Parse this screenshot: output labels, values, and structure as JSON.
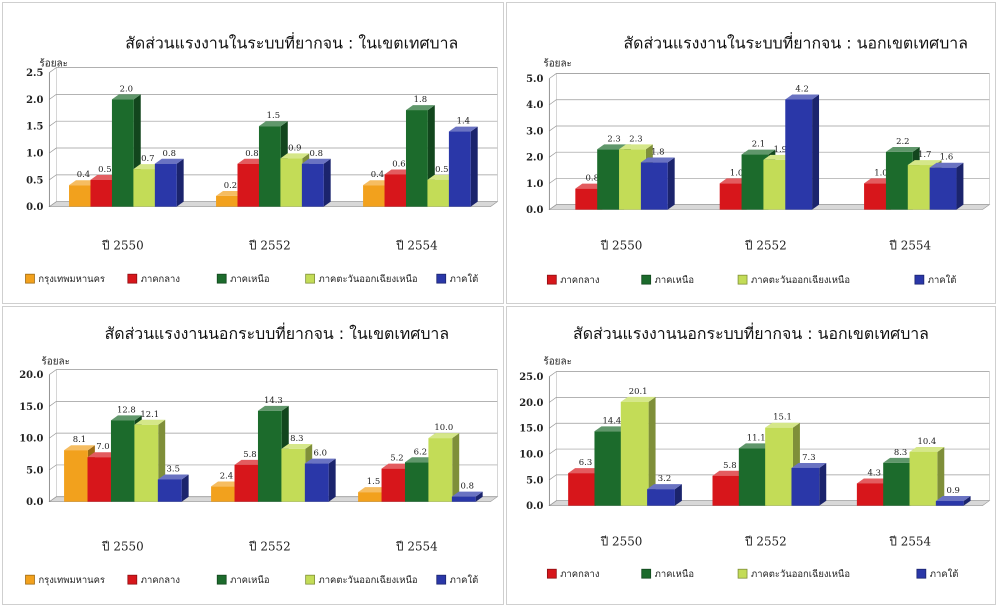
{
  "colors": {
    "กรุงเทพมหานคร": "#f2a11d",
    "ภาคกลาง": "#d7161b",
    "ภาคเหนือ": "#1c6b2c",
    "ภาคตะวันออกเฉียงเหนือ": "#c3dc57",
    "ภาคใต้": "#2a37a8"
  },
  "chart_data": [
    {
      "type": "bar",
      "title": "สัดส่วนแรงงานในระบบที่ยากจน : ในเขตเทศบาล",
      "ylabel": "ร้อยละ",
      "categories": [
        "ปี 2550",
        "ปี 2552",
        "ปี 2554"
      ],
      "ylim": [
        0,
        2.5
      ],
      "yticks": [
        "0.0",
        "0.5",
        "1.0",
        "1.5",
        "2.0",
        "2.5"
      ],
      "grid": true,
      "legend_position": "bottom",
      "series": [
        {
          "name": "กรุงเทพมหานคร",
          "values": [
            0.4,
            0.2,
            0.4
          ],
          "labels": [
            "0.4",
            "0.2",
            "0.4"
          ]
        },
        {
          "name": "ภาคกลาง",
          "values": [
            0.5,
            0.8,
            0.6
          ],
          "labels": [
            "0.5",
            "0.8",
            "0.6"
          ]
        },
        {
          "name": "ภาคเหนือ",
          "values": [
            2.0,
            1.5,
            1.8
          ],
          "labels": [
            "2.0",
            "1.5",
            "1.8"
          ]
        },
        {
          "name": "ภาคตะวันออกเฉียงเหนือ",
          "values": [
            0.7,
            0.9,
            0.5
          ],
          "labels": [
            "0.7",
            "0.9",
            "0.5"
          ]
        },
        {
          "name": "ภาคใต้",
          "values": [
            0.8,
            0.8,
            1.4
          ],
          "labels": [
            "0.8",
            "0.8",
            "1.4"
          ]
        }
      ]
    },
    {
      "type": "bar",
      "title": "สัดส่วนแรงงานในระบบที่ยากจน : นอกเขตเทศบาล",
      "ylabel": "ร้อยละ",
      "categories": [
        "ปี 2550",
        "ปี 2552",
        "ปี 2554"
      ],
      "ylim": [
        0,
        5.0
      ],
      "yticks": [
        "0.0",
        "1.0",
        "2.0",
        "3.0",
        "4.0",
        "5.0"
      ],
      "grid": true,
      "legend_position": "bottom",
      "series": [
        {
          "name": "ภาคกลาง",
          "values": [
            0.8,
            1.0,
            1.0
          ],
          "labels": [
            "0.8",
            "1.0",
            "1.0"
          ]
        },
        {
          "name": "ภาคเหนือ",
          "values": [
            2.3,
            2.1,
            2.2
          ],
          "labels": [
            "2.3",
            "2.1",
            "2.2"
          ]
        },
        {
          "name": "ภาคตะวันออกเฉียงเหนือ",
          "values": [
            2.3,
            1.9,
            1.7
          ],
          "labels": [
            "2.3",
            "1.9",
            "1.7"
          ]
        },
        {
          "name": "ภาคใต้",
          "values": [
            1.8,
            4.2,
            1.6
          ],
          "labels": [
            "1.8",
            "4.2",
            "1.6"
          ]
        }
      ]
    },
    {
      "type": "bar",
      "title": "สัดส่วนแรงงานนอกระบบที่ยากจน : ในเขตเทศบาล",
      "ylabel": "ร้อยละ",
      "categories": [
        "ปี 2550",
        "ปี 2552",
        "ปี 2554"
      ],
      "ylim": [
        0,
        20.0
      ],
      "yticks": [
        "0.0",
        "5.0",
        "10.0",
        "15.0",
        "20.0"
      ],
      "grid": true,
      "legend_position": "bottom",
      "series": [
        {
          "name": "กรุงเทพมหานคร",
          "values": [
            8.1,
            2.4,
            1.5
          ],
          "labels": [
            "8.1",
            "2.4",
            "1.5"
          ]
        },
        {
          "name": "ภาคกลาง",
          "values": [
            7.0,
            5.8,
            5.2
          ],
          "labels": [
            "7.0",
            "5.8",
            "5.2"
          ]
        },
        {
          "name": "ภาคเหนือ",
          "values": [
            12.8,
            14.3,
            6.2
          ],
          "labels": [
            "12.8",
            "14.3",
            "6.2"
          ]
        },
        {
          "name": "ภาคตะวันออกเฉียงเหนือ",
          "values": [
            12.1,
            8.3,
            10.0
          ],
          "labels": [
            "12.1",
            "8.3",
            "10.0"
          ]
        },
        {
          "name": "ภาคใต้",
          "values": [
            3.5,
            6.0,
            0.8
          ],
          "labels": [
            "3.5",
            "6.0",
            "0.8"
          ]
        }
      ]
    },
    {
      "type": "bar",
      "title": "สัดส่วนแรงงานนอกระบบที่ยากจน : นอกเขตเทศบาล",
      "ylabel": "ร้อยละ",
      "categories": [
        "ปี 2550",
        "ปี 2552",
        "ปี 2554"
      ],
      "ylim": [
        0,
        25.0
      ],
      "yticks": [
        "0.0",
        "5.0",
        "10.0",
        "15.0",
        "20.0",
        "25.0"
      ],
      "grid": true,
      "legend_position": "bottom",
      "series": [
        {
          "name": "ภาคกลาง",
          "values": [
            6.3,
            5.8,
            4.3
          ],
          "labels": [
            "6.3",
            "5.8",
            "4.3"
          ]
        },
        {
          "name": "ภาคเหนือ",
          "values": [
            14.4,
            11.1,
            8.3
          ],
          "labels": [
            "14.4",
            "11.1",
            "8.3"
          ]
        },
        {
          "name": "ภาคตะวันออกเฉียงเหนือ",
          "values": [
            20.1,
            15.1,
            10.4
          ],
          "labels": [
            "20.1",
            "15.1",
            "10.4"
          ]
        },
        {
          "name": "ภาคใต้",
          "values": [
            3.2,
            7.3,
            0.9
          ],
          "labels": [
            "3.2",
            "7.3",
            "0.9"
          ]
        }
      ]
    }
  ]
}
